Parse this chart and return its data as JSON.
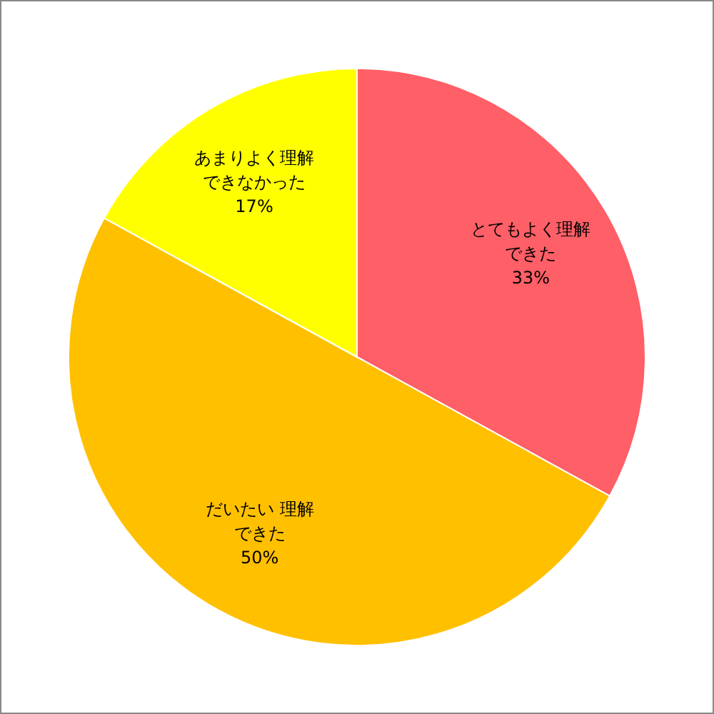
{
  "chart_data": {
    "type": "pie",
    "categories": [
      "とてもよく理解できた",
      "だいたい 理解できた",
      "あまりよく理解できなかった"
    ],
    "values": [
      33,
      50,
      17
    ],
    "value_labels": [
      "33%",
      "50%",
      "17%"
    ],
    "colors": [
      "#ff5f67",
      "#ffc000",
      "#ffff00"
    ]
  }
}
